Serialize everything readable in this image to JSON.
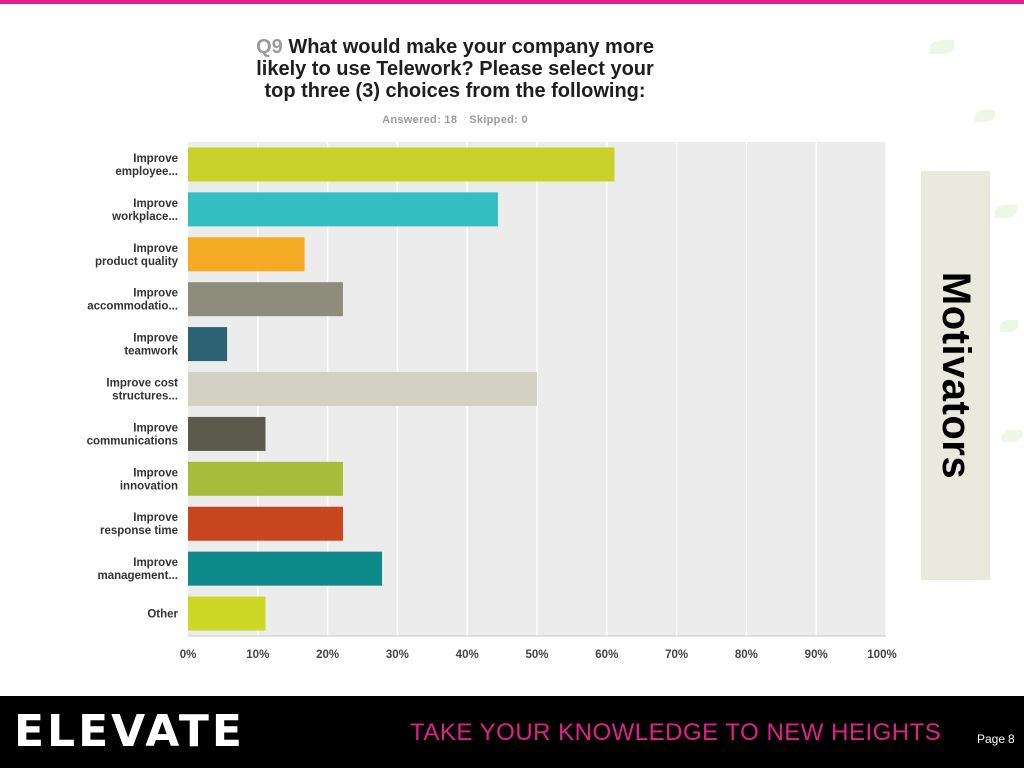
{
  "colors": {
    "accent": "#e0218a",
    "footer_bg": "#000000",
    "side_panel_bg": "#e9e9de",
    "plot_bg": "#ececec",
    "grid": "#ffffff",
    "leaf": "#cfe9b8"
  },
  "slide": {
    "side_label": "Motivators",
    "logo_text": "ELEVATE",
    "tagline": "TAKE YOUR KNOWLEDGE TO NEW HEIGHTS",
    "page_label": "Page",
    "page_number": "8"
  },
  "survey": {
    "question_number": "Q9",
    "question_text": "What would make your company more\nlikely to use Telework? Please select your\ntop three (3) choices from the following:",
    "answered": "Answered: 18",
    "skipped": "Skipped: 0"
  },
  "chart_data": {
    "type": "bar",
    "orientation": "horizontal",
    "categories": [
      "Improve\nemployee...",
      "Improve\nworkplace...",
      "Improve\nproduct quality",
      "Improve\naccommodatio...",
      "Improve\nteamwork",
      "Improve cost\nstructures...",
      "Improve\ncommunications",
      "Improve\ninnovation",
      "Improve\nresponse time",
      "Improve\nmanagement...",
      "Other"
    ],
    "values": [
      61.1,
      44.4,
      16.7,
      22.2,
      5.6,
      50.0,
      11.1,
      22.2,
      22.2,
      27.8,
      11.1
    ],
    "bar_colors": [
      "#c9d22a",
      "#33bfc1",
      "#f6ab24",
      "#8e8c7d",
      "#2d6272",
      "#d3d1c3",
      "#5b5a4d",
      "#a8bc3b",
      "#c8451d",
      "#0e8a8a",
      "#cdd726"
    ],
    "x_ticks": [
      "0%",
      "10%",
      "20%",
      "30%",
      "40%",
      "50%",
      "60%",
      "70%",
      "80%",
      "90%",
      "100%"
    ],
    "xlim": [
      0,
      100
    ],
    "unit": "%",
    "grid": true,
    "legend": "none"
  }
}
